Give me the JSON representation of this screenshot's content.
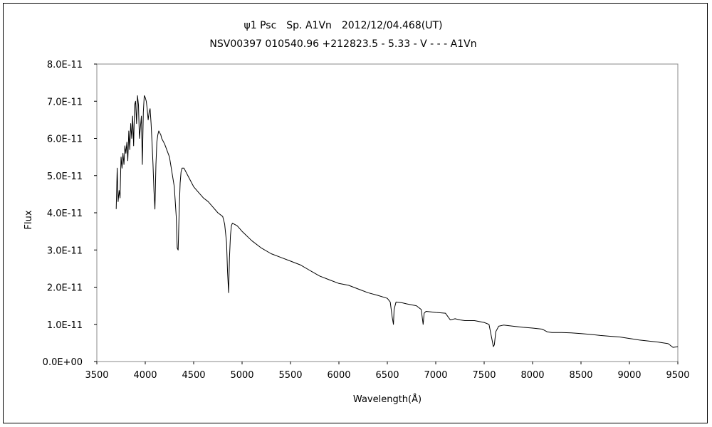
{
  "chart_data": {
    "type": "line",
    "title": "ψ1 Psc　Sp. A1Vn　2012/12/04.468(UT)",
    "subtitle": "NSV00397 010540.96 +212823.5 - 5.33 - V - - - A1Vn",
    "xlabel": "Wavelength(Å)",
    "ylabel": "Flux",
    "xlim": [
      3500,
      9500
    ],
    "ylim": [
      0,
      8e-11
    ],
    "x_ticks": [
      3500,
      4000,
      4500,
      5000,
      5500,
      6000,
      6500,
      7000,
      7500,
      8000,
      8500,
      9000,
      9500
    ],
    "x_tick_labels": [
      "3500",
      "4000",
      "4500",
      "5000",
      "5500",
      "6000",
      "6500",
      "7000",
      "7500",
      "8000",
      "8500",
      "9000",
      "9500"
    ],
    "y_ticks": [
      0,
      1e-11,
      2e-11,
      3e-11,
      4e-11,
      5e-11,
      6e-11,
      7e-11,
      8e-11
    ],
    "y_tick_labels": [
      "0.0E+00",
      "1.0E-11",
      "2.0E-11",
      "3.0E-11",
      "4.0E-11",
      "5.0E-11",
      "6.0E-11",
      "7.0E-11",
      "8.0E-11"
    ],
    "grid": false,
    "legend": "none",
    "line_color": "#000000",
    "series": [
      {
        "x": [
          3700,
          3710,
          3720,
          3730,
          3740,
          3750,
          3760,
          3770,
          3780,
          3790,
          3800,
          3810,
          3820,
          3830,
          3840,
          3850,
          3860,
          3870,
          3880,
          3890,
          3900,
          3910,
          3920,
          3930,
          3940,
          3950,
          3960,
          3970,
          3980,
          3990,
          4000,
          4010,
          4020,
          4030,
          4040,
          4050,
          4060,
          4070,
          4080,
          4090,
          4100,
          4110,
          4120,
          4130,
          4140,
          4150,
          4160,
          4170,
          4180,
          4190,
          4200,
          4250,
          4300,
          4320,
          4330,
          4340,
          4350,
          4360,
          4370,
          4380,
          4400,
          4450,
          4500,
          4550,
          4600,
          4650,
          4700,
          4750,
          4800,
          4820,
          4840,
          4850,
          4861,
          4870,
          4880,
          4890,
          4900,
          4950,
          5000,
          5100,
          5200,
          5300,
          5400,
          5500,
          5600,
          5700,
          5800,
          5900,
          6000,
          6100,
          6200,
          6300,
          6400,
          6500,
          6530,
          6550,
          6563,
          6570,
          6590,
          6650,
          6700,
          6800,
          6850,
          6870,
          6880,
          6900,
          7000,
          7100,
          7150,
          7200,
          7250,
          7300,
          7400,
          7500,
          7550,
          7580,
          7595,
          7605,
          7620,
          7650,
          7700,
          7800,
          7900,
          8000,
          8100,
          8150,
          8200,
          8300,
          8400,
          8500,
          8600,
          8700,
          8800,
          8900,
          9000,
          9100,
          9200,
          9300,
          9400,
          9450,
          9500
        ],
        "y": [
          4.1e-11,
          5.2e-11,
          4.3e-11,
          4.6e-11,
          4.4e-11,
          5.5e-11,
          5.2e-11,
          5.6e-11,
          5.3e-11,
          5.8e-11,
          5.6e-11,
          5.9e-11,
          5.4e-11,
          6.2e-11,
          5.7e-11,
          6.4e-11,
          6e-11,
          6.6e-11,
          5.8e-11,
          6.9e-11,
          7e-11,
          6.4e-11,
          7.15e-11,
          6.9e-11,
          6e-11,
          6.3e-11,
          6.6e-11,
          5.3e-11,
          6.7e-11,
          7.15e-11,
          7.1e-11,
          7e-11,
          6.8e-11,
          6.5e-11,
          6.7e-11,
          6.8e-11,
          6.4e-11,
          5.9e-11,
          5.3e-11,
          4.6e-11,
          4.1e-11,
          5.3e-11,
          5.9e-11,
          6.1e-11,
          6.2e-11,
          6.15e-11,
          6.1e-11,
          6e-11,
          5.95e-11,
          5.9e-11,
          5.85e-11,
          5.5e-11,
          4.7e-11,
          3.9e-11,
          3.05e-11,
          3e-11,
          4e-11,
          4.8e-11,
          5.1e-11,
          5.2e-11,
          5.2e-11,
          4.95e-11,
          4.7e-11,
          4.55e-11,
          4.4e-11,
          4.3e-11,
          4.15e-11,
          4e-11,
          3.9e-11,
          3.7e-11,
          3.2e-11,
          2.4e-11,
          1.85e-11,
          2.8e-11,
          3.4e-11,
          3.65e-11,
          3.72e-11,
          3.65e-11,
          3.5e-11,
          3.25e-11,
          3.05e-11,
          2.9e-11,
          2.8e-11,
          2.7e-11,
          2.6e-11,
          2.45e-11,
          2.3e-11,
          2.2e-11,
          2.1e-11,
          2.05e-11,
          1.95e-11,
          1.85e-11,
          1.78e-11,
          1.7e-11,
          1.6e-11,
          1.2e-11,
          1e-11,
          1.4e-11,
          1.6e-11,
          1.58e-11,
          1.55e-11,
          1.5e-11,
          1.4e-11,
          1e-11,
          1.3e-11,
          1.35e-11,
          1.32e-11,
          1.3e-11,
          1.12e-11,
          1.15e-11,
          1.12e-11,
          1.1e-11,
          1.1e-11,
          1.05e-11,
          1e-11,
          6e-12,
          4e-12,
          4.5e-12,
          8e-12,
          9.5e-12,
          9.8e-12,
          9.5e-12,
          9.2e-12,
          9e-12,
          8.7e-12,
          8e-12,
          7.8e-12,
          7.8e-12,
          7.7e-12,
          7.5e-12,
          7.3e-12,
          7e-12,
          6.8e-12,
          6.6e-12,
          6.2e-12,
          5.8e-12,
          5.5e-12,
          5.2e-12,
          4.8e-12,
          3.8e-12,
          4e-12
        ]
      }
    ]
  }
}
